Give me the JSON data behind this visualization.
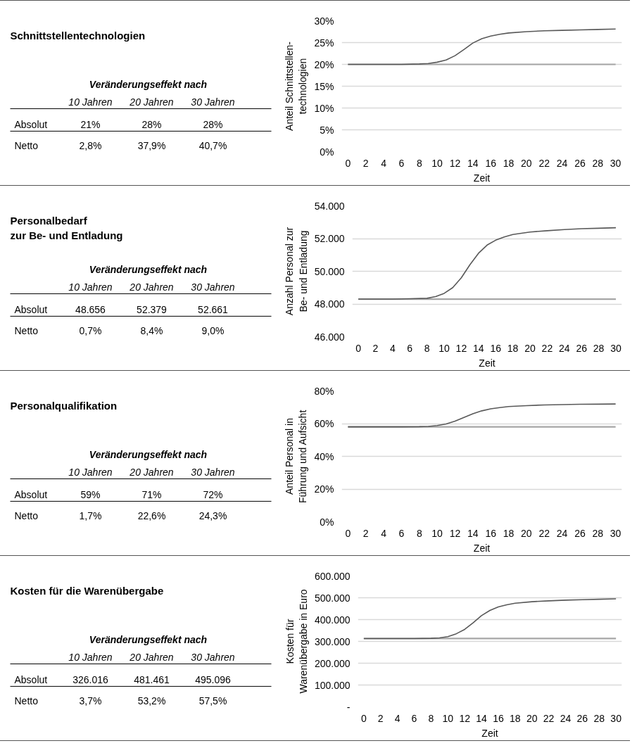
{
  "chart_data": [
    {
      "type": "other",
      "title": "Schnittstellentechnologien",
      "subtitle": "Veränderungseffekt nach",
      "annotations": [
        "10 Jahren",
        "20 Jahren",
        "30 Jahren",
        "Absolut",
        "21%",
        "28%",
        "28%",
        "Netto",
        "2,8%",
        "37,9%",
        "40,7%"
      ]
    },
    {
      "type": "line",
      "xlabel": "Zeit",
      "ylabel": "Anteil Schnittstellen-\ntechnologien",
      "x": [
        0,
        2,
        4,
        6,
        8,
        9,
        10,
        11,
        12,
        13,
        14,
        15,
        16,
        17,
        18,
        20,
        22,
        24,
        26,
        28,
        30
      ],
      "xlim": [
        -0.7,
        30.7
      ],
      "xticks": [
        0,
        2,
        4,
        6,
        8,
        10,
        12,
        14,
        16,
        18,
        20,
        22,
        24,
        26,
        28,
        30
      ],
      "ylim": [
        0,
        30
      ],
      "yticks": [
        {
          "value": 0,
          "label": "0%"
        },
        {
          "value": 5,
          "label": "5%"
        },
        {
          "value": 10,
          "label": "10%"
        },
        {
          "value": 15,
          "label": "15%"
        },
        {
          "value": 20,
          "label": "20%"
        },
        {
          "value": 25,
          "label": "25%"
        },
        {
          "value": 30,
          "label": "30%"
        }
      ],
      "grid": "y",
      "series": [
        {
          "color": "#a6a6a6",
          "values": [
            20,
            20,
            20,
            20,
            20,
            20,
            20,
            20,
            20,
            20,
            20,
            20,
            20,
            20,
            20,
            20,
            20,
            20,
            20,
            20,
            20
          ]
        },
        {
          "color": "#595959",
          "values": [
            20,
            20,
            20,
            20,
            20.1,
            20.2,
            20.5,
            21,
            22,
            23.4,
            24.9,
            25.9,
            26.5,
            26.9,
            27.2,
            27.5,
            27.7,
            27.8,
            27.9,
            28,
            28.1
          ]
        }
      ]
    },
    {
      "type": "other",
      "title": "Personalbedarf\nzur Be- und Entladung",
      "subtitle": "Veränderungseffekt nach",
      "annotations": [
        "10 Jahren",
        "20 Jahren",
        "30 Jahren",
        "Absolut",
        "48.656",
        "52.379",
        "52.661",
        "Netto",
        "0,7%",
        "8,4%",
        "9,0%"
      ]
    },
    {
      "type": "line",
      "xlabel": "Zeit",
      "ylabel": "Anzahl Personal zur\nBe- und Entladung",
      "x": [
        0,
        2,
        4,
        6,
        8,
        9,
        10,
        11,
        12,
        13,
        14,
        15,
        16,
        17,
        18,
        20,
        22,
        24,
        26,
        28,
        30
      ],
      "xlim": [
        -0.7,
        30.7
      ],
      "xticks": [
        0,
        2,
        4,
        6,
        8,
        10,
        12,
        14,
        16,
        18,
        20,
        22,
        24,
        26,
        28,
        30
      ],
      "ylim": [
        46000,
        54000
      ],
      "yticks": [
        {
          "value": 46000,
          "label": "46.000"
        },
        {
          "value": 48000,
          "label": "48.000"
        },
        {
          "value": 50000,
          "label": "50.000"
        },
        {
          "value": 52000,
          "label": "52.000"
        },
        {
          "value": 54000,
          "label": "54.000"
        }
      ],
      "grid": "y",
      "series": [
        {
          "color": "#a6a6a6",
          "values": [
            48300,
            48300,
            48300,
            48300,
            48300,
            48300,
            48300,
            48300,
            48300,
            48300,
            48300,
            48300,
            48300,
            48300,
            48300,
            48300,
            48300,
            48300,
            48300,
            48300,
            48300
          ]
        },
        {
          "color": "#595959",
          "values": [
            48300,
            48300,
            48300,
            48320,
            48350,
            48450,
            48650,
            49000,
            49600,
            50400,
            51100,
            51600,
            51900,
            52100,
            52250,
            52400,
            52480,
            52550,
            52600,
            52630,
            52660
          ]
        }
      ]
    },
    {
      "type": "other",
      "title": "Personalqualifikation",
      "subtitle": "Veränderungseffekt nach",
      "annotations": [
        "10 Jahren",
        "20 Jahren",
        "30 Jahren",
        "Absolut",
        "59%",
        "71%",
        "72%",
        "Netto",
        "1,7%",
        "22,6%",
        "24,3%"
      ]
    },
    {
      "type": "line",
      "xlabel": "Zeit",
      "ylabel": "Anteil Personal in\nFührung und Aufsicht",
      "x": [
        0,
        2,
        4,
        6,
        8,
        9,
        10,
        11,
        12,
        13,
        14,
        15,
        16,
        17,
        18,
        20,
        22,
        24,
        26,
        28,
        30
      ],
      "xlim": [
        -0.7,
        30.7
      ],
      "xticks": [
        0,
        2,
        4,
        6,
        8,
        10,
        12,
        14,
        16,
        18,
        20,
        22,
        24,
        26,
        28,
        30
      ],
      "ylim": [
        0,
        80
      ],
      "yticks": [
        {
          "value": 0,
          "label": "0%"
        },
        {
          "value": 20,
          "label": "20%"
        },
        {
          "value": 40,
          "label": "40%"
        },
        {
          "value": 60,
          "label": "60%"
        },
        {
          "value": 80,
          "label": "80%"
        }
      ],
      "grid": "y",
      "series": [
        {
          "color": "#a6a6a6",
          "values": [
            58,
            58,
            58,
            58,
            58,
            58,
            58,
            58,
            58,
            58,
            58,
            58,
            58,
            58,
            58,
            58,
            58,
            58,
            58,
            58,
            58
          ]
        },
        {
          "color": "#595959",
          "values": [
            58,
            58,
            58,
            58,
            58.1,
            58.3,
            58.8,
            59.8,
            61.5,
            63.8,
            66,
            67.8,
            69,
            69.8,
            70.4,
            71,
            71.4,
            71.6,
            71.8,
            71.9,
            72
          ]
        }
      ]
    },
    {
      "type": "other",
      "title": "Kosten für die Warenübergabe",
      "subtitle": "Veränderungseffekt nach",
      "annotations": [
        "10 Jahren",
        "20 Jahren",
        "30 Jahren",
        "Absolut",
        "326.016",
        "481.461",
        "495.096",
        "Netto",
        "3,7%",
        "53,2%",
        "57,5%"
      ]
    },
    {
      "type": "line",
      "xlabel": "Zeit",
      "ylabel": "Kosten für\nWarenübergabe in Euro",
      "x": [
        0,
        2,
        4,
        6,
        8,
        9,
        10,
        11,
        12,
        13,
        14,
        15,
        16,
        17,
        18,
        20,
        22,
        24,
        26,
        28,
        30
      ],
      "xlim": [
        -0.7,
        30.7
      ],
      "xticks": [
        0,
        2,
        4,
        6,
        8,
        10,
        12,
        14,
        16,
        18,
        20,
        22,
        24,
        26,
        28,
        30
      ],
      "ylim": [
        0,
        600000
      ],
      "yticks": [
        {
          "value": 0,
          "label": "-"
        },
        {
          "value": 100000,
          "label": "100.000"
        },
        {
          "value": 200000,
          "label": "200.000"
        },
        {
          "value": 300000,
          "label": "300.000"
        },
        {
          "value": 400000,
          "label": "400.000"
        },
        {
          "value": 500000,
          "label": "500.000"
        },
        {
          "value": 600000,
          "label": "600.000"
        }
      ],
      "grid": "y",
      "series": [
        {
          "color": "#a6a6a6",
          "values": [
            313000,
            313000,
            313000,
            313000,
            313000,
            313000,
            313000,
            313000,
            313000,
            313000,
            313000,
            313000,
            313000,
            313000,
            313000,
            313000,
            313000,
            313000,
            313000,
            313000,
            313000
          ]
        },
        {
          "color": "#595959",
          "values": [
            313000,
            313000,
            313000,
            313000,
            314000,
            316000,
            322000,
            335000,
            355000,
            385000,
            418000,
            442000,
            458000,
            468000,
            475000,
            482000,
            486000,
            489000,
            491000,
            493000,
            495000
          ]
        }
      ]
    }
  ]
}
